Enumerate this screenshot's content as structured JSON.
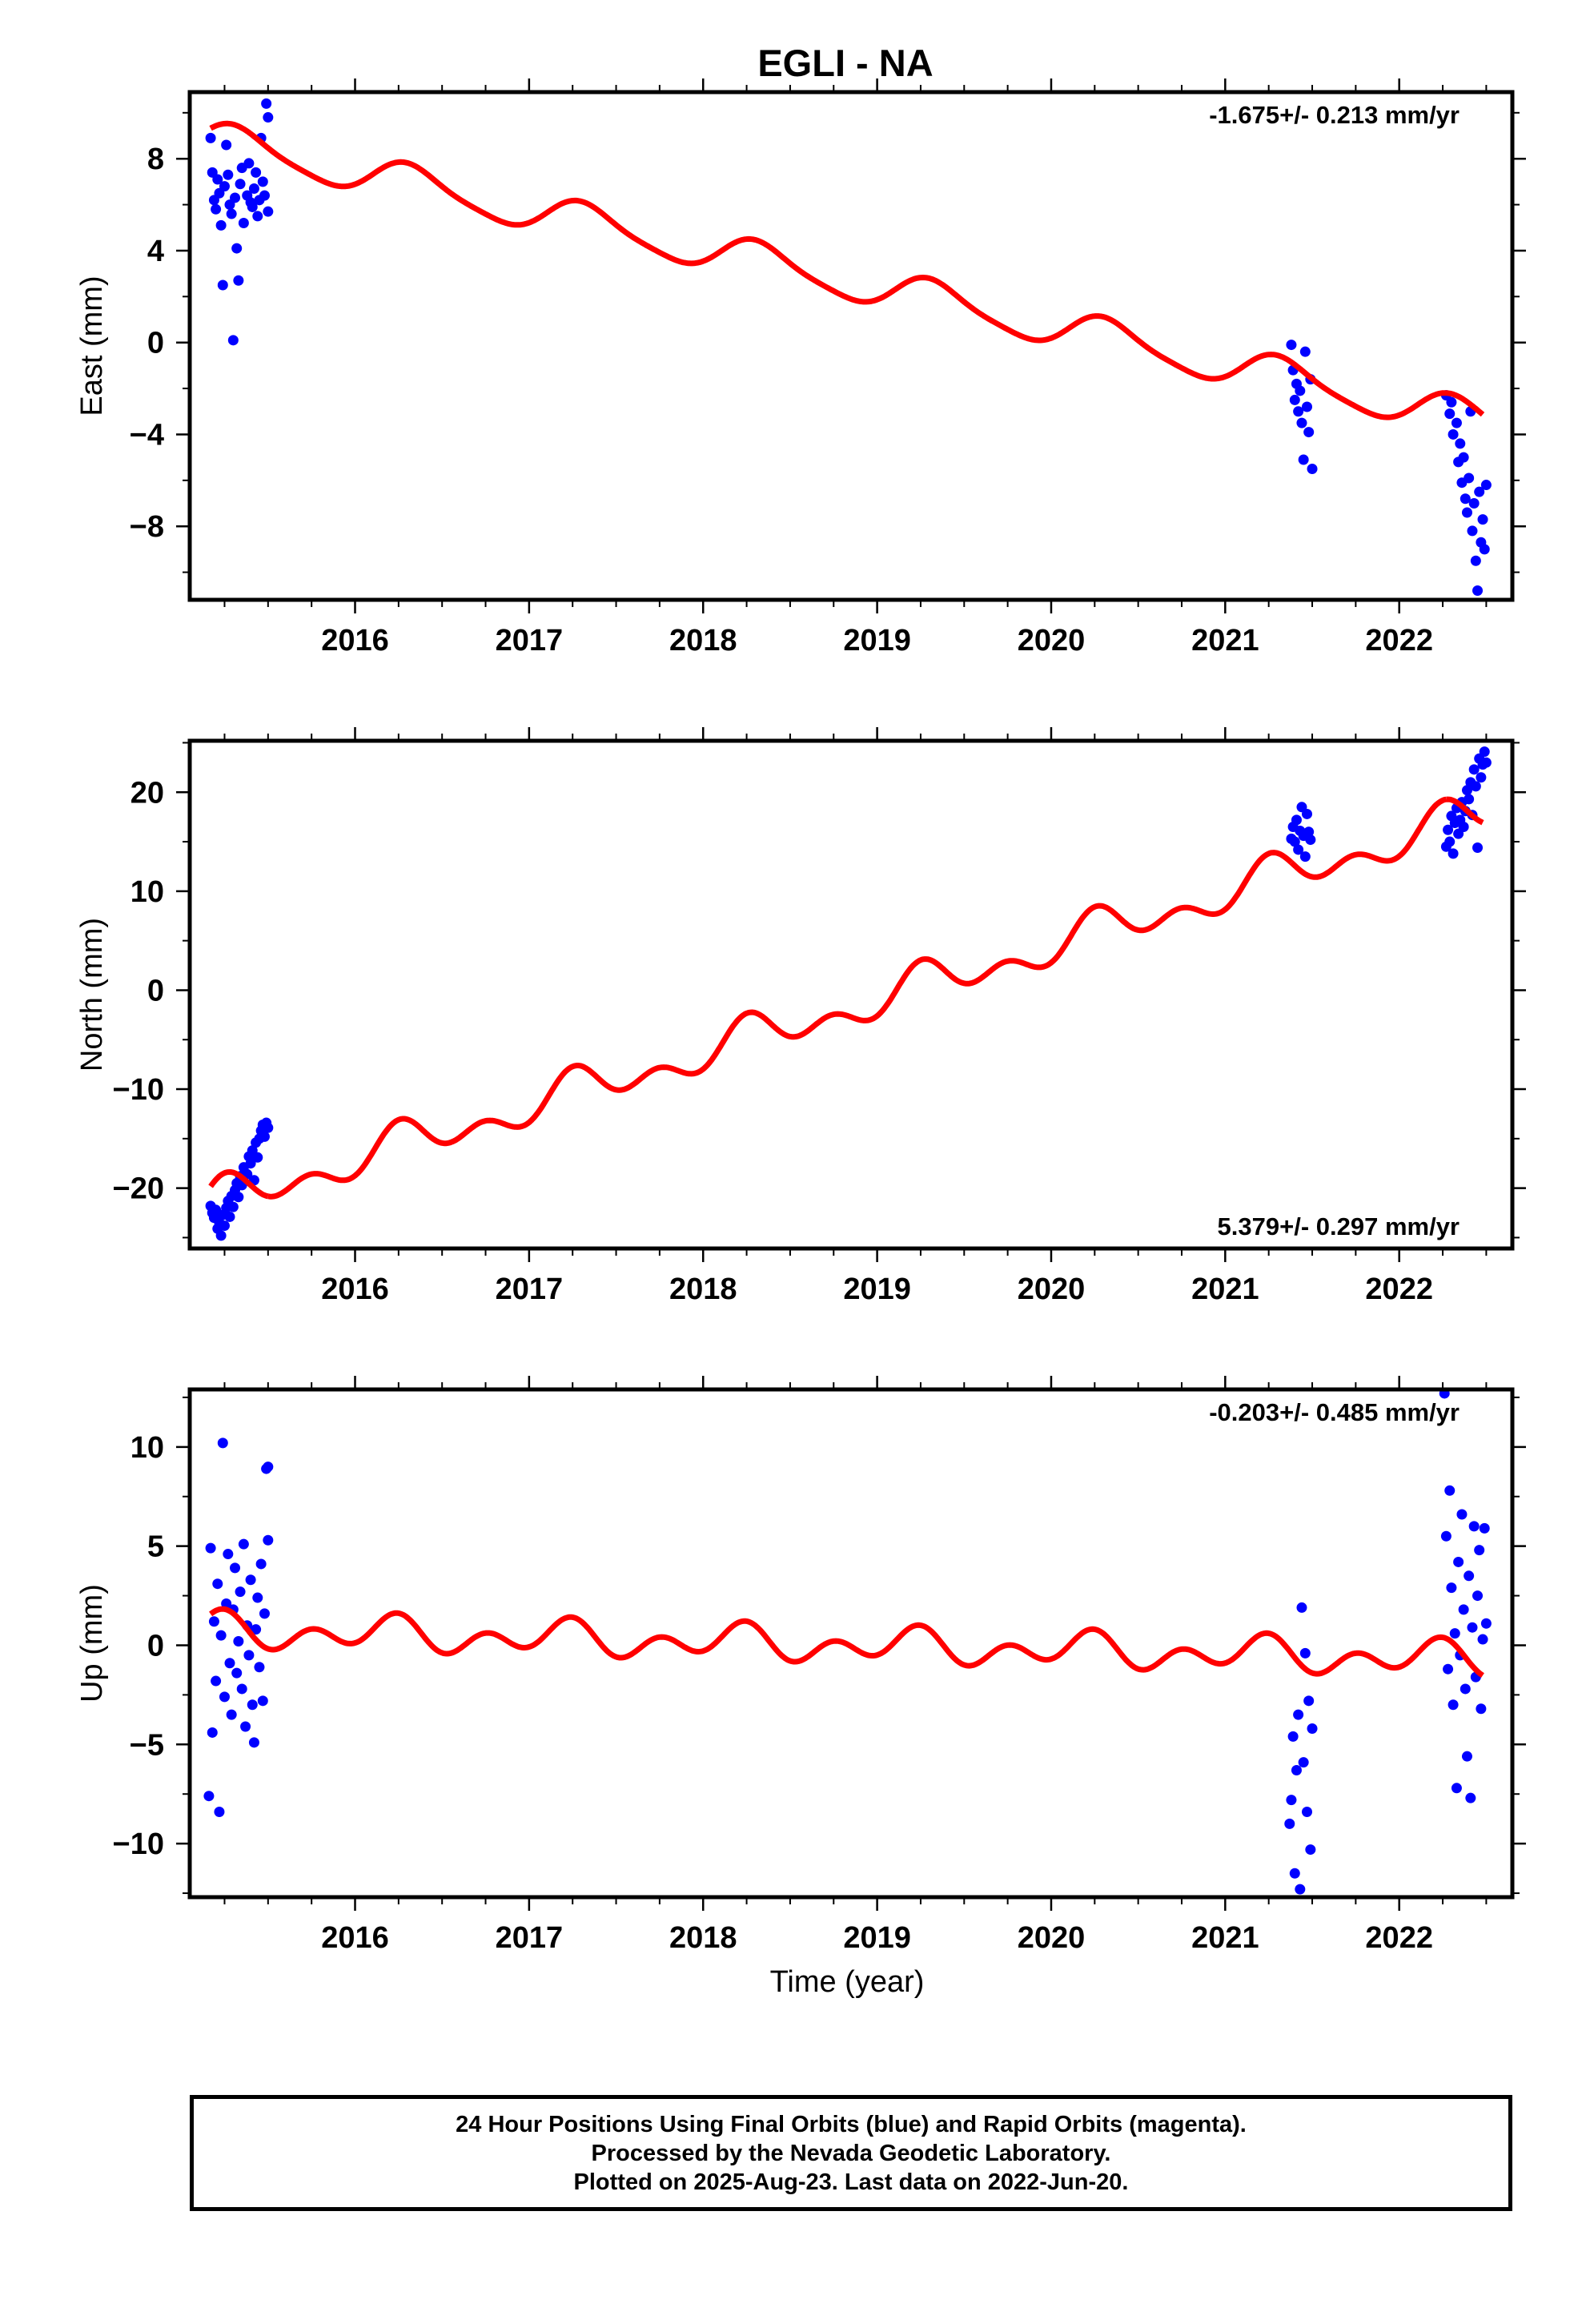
{
  "figure": {
    "title": "EGLI - NA",
    "xlabel": "Time (year)",
    "caption": [
      "24 Hour Positions Using Final Orbits (blue) and Rapid Orbits (magenta).",
      "Processed by the Nevada Geodetic Laboratory.",
      "Plotted on 2025-Aug-23. Last data on 2022-Jun-20."
    ],
    "colors": {
      "final_orbits": "#0000ff",
      "model_fit": "#ff0000"
    }
  },
  "chart_data": [
    {
      "type": "scatter",
      "ylabel": "East (mm)",
      "rate_label": "-1.675+/- 0.213 mm/yr",
      "rate_position": "top-right",
      "xlim": [
        2015.05,
        2022.65
      ],
      "ylim": [
        -11.2,
        10.9
      ],
      "xticks": [
        2016,
        2017,
        2018,
        2019,
        2020,
        2021,
        2022
      ],
      "xtick_labels": [
        "2016",
        "2017",
        "2018",
        "2019",
        "2020",
        "2021",
        "2022"
      ],
      "yticks": [
        -8,
        -4,
        0,
        4,
        8
      ],
      "ytick_labels": [
        "−8",
        "−4",
        "0",
        "4",
        "8"
      ],
      "grid": false,
      "series": [
        {
          "role": "final_orbits",
          "points": [
            [
              2015.17,
              8.9
            ],
            [
              2015.18,
              7.4
            ],
            [
              2015.19,
              6.2
            ],
            [
              2015.2,
              5.8
            ],
            [
              2015.21,
              7.1
            ],
            [
              2015.22,
              6.5
            ],
            [
              2015.23,
              5.1
            ],
            [
              2015.24,
              2.5
            ],
            [
              2015.25,
              6.8
            ],
            [
              2015.26,
              8.6
            ],
            [
              2015.27,
              7.3
            ],
            [
              2015.28,
              6.0
            ],
            [
              2015.29,
              5.6
            ],
            [
              2015.3,
              0.1
            ],
            [
              2015.31,
              6.3
            ],
            [
              2015.32,
              4.1
            ],
            [
              2015.33,
              2.7
            ],
            [
              2015.34,
              6.9
            ],
            [
              2015.35,
              7.6
            ],
            [
              2015.36,
              5.2
            ],
            [
              2015.38,
              6.4
            ],
            [
              2015.39,
              7.8
            ],
            [
              2015.4,
              6.1
            ],
            [
              2015.41,
              5.9
            ],
            [
              2015.42,
              6.7
            ],
            [
              2015.43,
              7.4
            ],
            [
              2015.44,
              5.5
            ],
            [
              2015.45,
              6.2
            ],
            [
              2015.46,
              8.9
            ],
            [
              2015.47,
              7.0
            ],
            [
              2015.48,
              6.4
            ],
            [
              2015.49,
              10.4
            ],
            [
              2015.5,
              9.8
            ],
            [
              2015.5,
              5.7
            ],
            [
              2021.38,
              -0.1
            ],
            [
              2021.39,
              -1.2
            ],
            [
              2021.4,
              -2.5
            ],
            [
              2021.41,
              -1.8
            ],
            [
              2021.42,
              -3.0
            ],
            [
              2021.43,
              -2.1
            ],
            [
              2021.44,
              -3.5
            ],
            [
              2021.45,
              -5.1
            ],
            [
              2021.46,
              -0.4
            ],
            [
              2021.47,
              -2.8
            ],
            [
              2021.48,
              -3.9
            ],
            [
              2021.49,
              -1.6
            ],
            [
              2021.5,
              -5.5
            ],
            [
              2022.27,
              -2.3
            ],
            [
              2022.29,
              -3.1
            ],
            [
              2022.3,
              -2.6
            ],
            [
              2022.31,
              -4.0
            ],
            [
              2022.33,
              -3.5
            ],
            [
              2022.34,
              -5.2
            ],
            [
              2022.35,
              -4.4
            ],
            [
              2022.36,
              -6.1
            ],
            [
              2022.37,
              -5.0
            ],
            [
              2022.38,
              -6.8
            ],
            [
              2022.39,
              -7.4
            ],
            [
              2022.4,
              -5.9
            ],
            [
              2022.41,
              -3.0
            ],
            [
              2022.42,
              -8.2
            ],
            [
              2022.43,
              -7.0
            ],
            [
              2022.44,
              -9.5
            ],
            [
              2022.45,
              -10.8
            ],
            [
              2022.46,
              -6.5
            ],
            [
              2022.47,
              -8.7
            ],
            [
              2022.48,
              -7.7
            ],
            [
              2022.49,
              -9.0
            ],
            [
              2022.5,
              -6.2
            ]
          ]
        },
        {
          "role": "model_fit",
          "segments": [
            [
              2015.17,
              2022.48
            ]
          ],
          "model": {
            "offset": 2.72,
            "rate": -1.675,
            "reference_epoch": 2018.8,
            "cos_a": -0.37,
            "sin_a": 0.71,
            "cos_s": -0.15,
            "sin_s": 0.0
          }
        }
      ]
    },
    {
      "type": "scatter",
      "ylabel": "North (mm)",
      "rate_label": "5.379+/- 0.297 mm/yr",
      "rate_position": "bottom-right",
      "xlim": [
        2015.05,
        2022.65
      ],
      "ylim": [
        -26.1,
        25.2
      ],
      "xticks": [
        2016,
        2017,
        2018,
        2019,
        2020,
        2021,
        2022
      ],
      "xtick_labels": [
        "2016",
        "2017",
        "2018",
        "2019",
        "2020",
        "2021",
        "2022"
      ],
      "yticks": [
        -20,
        -10,
        0,
        10,
        20
      ],
      "ytick_labels": [
        "−20",
        "−10",
        "0",
        "10",
        "20"
      ],
      "grid": false,
      "series": [
        {
          "role": "final_orbits",
          "points": [
            [
              2015.17,
              -21.8
            ],
            [
              2015.18,
              -22.5
            ],
            [
              2015.19,
              -23.0
            ],
            [
              2015.2,
              -22.2
            ],
            [
              2015.21,
              -24.1
            ],
            [
              2015.22,
              -23.5
            ],
            [
              2015.23,
              -24.8
            ],
            [
              2015.24,
              -22.7
            ],
            [
              2015.25,
              -23.8
            ],
            [
              2015.26,
              -22.0
            ],
            [
              2015.27,
              -21.3
            ],
            [
              2015.28,
              -22.9
            ],
            [
              2015.29,
              -20.8
            ],
            [
              2015.3,
              -21.9
            ],
            [
              2015.31,
              -20.2
            ],
            [
              2015.32,
              -19.5
            ],
            [
              2015.33,
              -20.9
            ],
            [
              2015.34,
              -18.8
            ],
            [
              2015.35,
              -19.7
            ],
            [
              2015.36,
              -17.9
            ],
            [
              2015.38,
              -18.6
            ],
            [
              2015.39,
              -16.8
            ],
            [
              2015.4,
              -17.5
            ],
            [
              2015.41,
              -16.2
            ],
            [
              2015.42,
              -19.2
            ],
            [
              2015.43,
              -15.4
            ],
            [
              2015.44,
              -16.9
            ],
            [
              2015.45,
              -15.0
            ],
            [
              2015.46,
              -14.2
            ],
            [
              2015.47,
              -13.6
            ],
            [
              2015.48,
              -14.8
            ],
            [
              2015.49,
              -13.4
            ],
            [
              2015.5,
              -13.9
            ],
            [
              2021.38,
              15.3
            ],
            [
              2021.39,
              16.5
            ],
            [
              2021.4,
              15.0
            ],
            [
              2021.41,
              17.2
            ],
            [
              2021.42,
              14.2
            ],
            [
              2021.43,
              16.1
            ],
            [
              2021.44,
              18.5
            ],
            [
              2021.45,
              15.6
            ],
            [
              2021.46,
              13.5
            ],
            [
              2021.47,
              17.8
            ],
            [
              2021.48,
              16.0
            ],
            [
              2021.49,
              15.2
            ],
            [
              2022.27,
              14.5
            ],
            [
              2022.28,
              16.2
            ],
            [
              2022.29,
              15.0
            ],
            [
              2022.3,
              17.6
            ],
            [
              2022.31,
              13.8
            ],
            [
              2022.32,
              16.9
            ],
            [
              2022.33,
              18.4
            ],
            [
              2022.34,
              15.8
            ],
            [
              2022.35,
              17.2
            ],
            [
              2022.36,
              19.0
            ],
            [
              2022.37,
              16.5
            ],
            [
              2022.38,
              18.1
            ],
            [
              2022.39,
              20.2
            ],
            [
              2022.4,
              19.3
            ],
            [
              2022.41,
              21.0
            ],
            [
              2022.42,
              17.7
            ],
            [
              2022.43,
              22.3
            ],
            [
              2022.44,
              20.6
            ],
            [
              2022.45,
              14.4
            ],
            [
              2022.46,
              23.4
            ],
            [
              2022.47,
              21.5
            ],
            [
              2022.48,
              22.8
            ],
            [
              2022.49,
              24.1
            ],
            [
              2022.5,
              23.0
            ]
          ]
        },
        {
          "role": "model_fit",
          "segments": [
            [
              2015.17,
              2015.5
            ],
            [
              2015.5,
              2021.38
            ],
            [
              2021.38,
              2022.27
            ],
            [
              2022.27,
              2022.48
            ]
          ],
          "model": {
            "offset": -1.0,
            "rate": 5.379,
            "reference_epoch": 2019.0,
            "cos_a": -0.3,
            "sin_a": 1.4,
            "cos_s": -1.3,
            "sin_s": 0.0
          }
        }
      ]
    },
    {
      "type": "scatter",
      "ylabel": "Up (mm)",
      "rate_label": "-0.203+/- 0.485 mm/yr",
      "rate_position": "top-right",
      "xlim": [
        2015.05,
        2022.65
      ],
      "ylim": [
        -12.7,
        12.9
      ],
      "xticks": [
        2016,
        2017,
        2018,
        2019,
        2020,
        2021,
        2022
      ],
      "xtick_labels": [
        "2016",
        "2017",
        "2018",
        "2019",
        "2020",
        "2021",
        "2022"
      ],
      "yticks": [
        -10,
        -5,
        0,
        5,
        10
      ],
      "ytick_labels": [
        "−10",
        "−5",
        "0",
        "5",
        "10"
      ],
      "grid": false,
      "series": [
        {
          "role": "final_orbits",
          "points": [
            [
              2015.16,
              -7.6
            ],
            [
              2015.17,
              4.9
            ],
            [
              2015.18,
              -4.4
            ],
            [
              2015.19,
              1.2
            ],
            [
              2015.2,
              -1.8
            ],
            [
              2015.21,
              3.1
            ],
            [
              2015.22,
              -8.4
            ],
            [
              2015.23,
              0.5
            ],
            [
              2015.24,
              10.2
            ],
            [
              2015.25,
              -2.6
            ],
            [
              2015.26,
              2.1
            ],
            [
              2015.27,
              4.6
            ],
            [
              2015.28,
              -0.9
            ],
            [
              2015.29,
              -3.5
            ],
            [
              2015.3,
              1.8
            ],
            [
              2015.31,
              3.9
            ],
            [
              2015.32,
              -1.4
            ],
            [
              2015.33,
              0.2
            ],
            [
              2015.34,
              2.7
            ],
            [
              2015.35,
              -2.2
            ],
            [
              2015.36,
              5.1
            ],
            [
              2015.37,
              -4.1
            ],
            [
              2015.38,
              1.0
            ],
            [
              2015.39,
              -0.5
            ],
            [
              2015.4,
              3.3
            ],
            [
              2015.41,
              -3.0
            ],
            [
              2015.42,
              -4.9
            ],
            [
              2015.43,
              0.8
            ],
            [
              2015.44,
              2.4
            ],
            [
              2015.45,
              -1.1
            ],
            [
              2015.46,
              4.1
            ],
            [
              2015.47,
              -2.8
            ],
            [
              2015.48,
              1.6
            ],
            [
              2015.49,
              8.9
            ],
            [
              2015.5,
              9.0
            ],
            [
              2015.5,
              5.3
            ],
            [
              2021.37,
              -9.0
            ],
            [
              2021.38,
              -7.8
            ],
            [
              2021.39,
              -4.6
            ],
            [
              2021.4,
              -11.5
            ],
            [
              2021.41,
              -6.3
            ],
            [
              2021.42,
              -3.5
            ],
            [
              2021.43,
              -12.3
            ],
            [
              2021.44,
              1.9
            ],
            [
              2021.45,
              -5.9
            ],
            [
              2021.46,
              -0.4
            ],
            [
              2021.47,
              -8.4
            ],
            [
              2021.48,
              -2.8
            ],
            [
              2021.49,
              -10.3
            ],
            [
              2021.5,
              -4.2
            ],
            [
              2022.26,
              12.7
            ],
            [
              2022.27,
              5.5
            ],
            [
              2022.28,
              -1.2
            ],
            [
              2022.29,
              7.8
            ],
            [
              2022.3,
              2.9
            ],
            [
              2022.31,
              -3.0
            ],
            [
              2022.32,
              0.6
            ],
            [
              2022.33,
              -7.2
            ],
            [
              2022.34,
              4.2
            ],
            [
              2022.35,
              -0.5
            ],
            [
              2022.36,
              6.6
            ],
            [
              2022.37,
              1.8
            ],
            [
              2022.38,
              -2.2
            ],
            [
              2022.39,
              -5.6
            ],
            [
              2022.4,
              3.5
            ],
            [
              2022.41,
              -7.7
            ],
            [
              2022.42,
              0.9
            ],
            [
              2022.43,
              6.0
            ],
            [
              2022.44,
              -1.6
            ],
            [
              2022.45,
              2.5
            ],
            [
              2022.46,
              4.8
            ],
            [
              2022.47,
              -3.2
            ],
            [
              2022.48,
              0.3
            ],
            [
              2022.49,
              5.9
            ],
            [
              2022.5,
              1.1
            ]
          ]
        },
        {
          "role": "model_fit",
          "segments": [
            [
              2015.17,
              2022.48
            ]
          ],
          "model": {
            "offset": 0.0,
            "rate": -0.203,
            "reference_epoch": 2018.8,
            "cos_a": 0.2,
            "sin_a": 0.45,
            "cos_s": -0.65,
            "sin_s": 0.0
          }
        }
      ]
    }
  ]
}
